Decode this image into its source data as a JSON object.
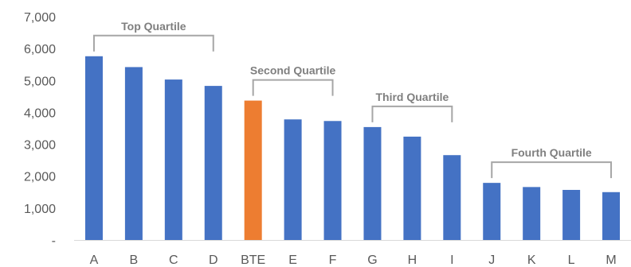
{
  "chart_data": {
    "type": "bar",
    "title": "",
    "xlabel": "",
    "ylabel": "",
    "categories": [
      "A",
      "B",
      "C",
      "D",
      "BTE",
      "E",
      "F",
      "G",
      "H",
      "I",
      "J",
      "K",
      "L",
      "M"
    ],
    "values": [
      5760,
      5420,
      5030,
      4830,
      4370,
      3780,
      3730,
      3540,
      3240,
      2660,
      1790,
      1660,
      1570,
      1500
    ],
    "ylim": [
      0,
      7000
    ],
    "yticks": [
      0,
      1000,
      2000,
      3000,
      4000,
      5000,
      6000,
      7000
    ],
    "ytick_labels": [
      "-",
      "1,000",
      "2,000",
      "3,000",
      "4,000",
      "5,000",
      "6,000",
      "7,000"
    ],
    "colors": {
      "default": "#4472c4",
      "highlight": "#ed7d31"
    },
    "highlight_category": "BTE",
    "grid": false,
    "legend": "none",
    "annotations": [
      {
        "label": "Top Quartile",
        "from": "A",
        "to": "D"
      },
      {
        "label": "Second Quartile",
        "from": "BTE",
        "to": "F"
      },
      {
        "label": "Third Quartile",
        "from": "G",
        "to": "I"
      },
      {
        "label": "Fourth Quartile",
        "from": "J",
        "to": "M"
      }
    ]
  }
}
